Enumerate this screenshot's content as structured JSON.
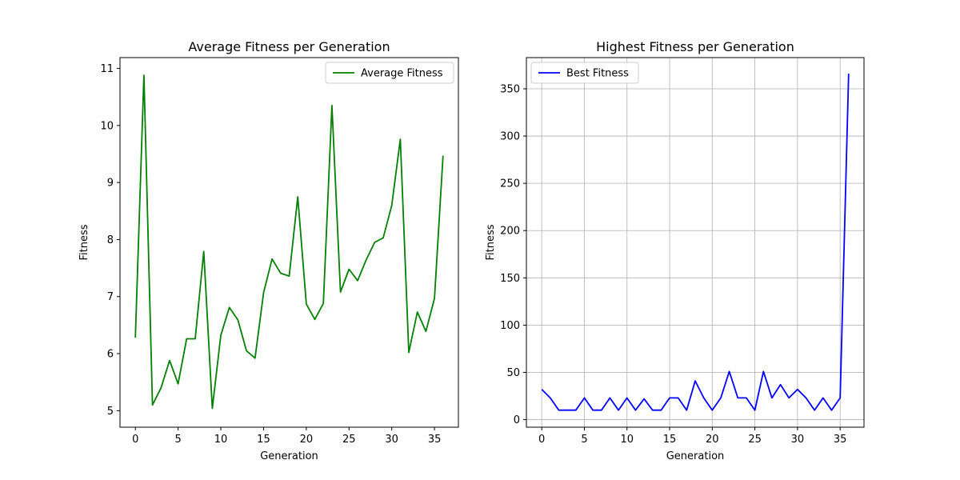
{
  "chart_data": [
    {
      "type": "line",
      "title": "Average Fitness per Generation",
      "xlabel": "Generation",
      "ylabel": "Fitness",
      "xlim": [
        -1.8,
        37.8
      ],
      "ylim": [
        4.71,
        11.19
      ],
      "xticks": [
        0,
        5,
        10,
        15,
        20,
        25,
        30,
        35
      ],
      "yticks": [
        5,
        6,
        7,
        8,
        9,
        10,
        11
      ],
      "grid": false,
      "legend": "top-right",
      "series": [
        {
          "name": "Average Fitness",
          "color": "#008000",
          "x": [
            0,
            1,
            2,
            3,
            4,
            5,
            6,
            7,
            8,
            9,
            10,
            11,
            12,
            13,
            14,
            15,
            16,
            17,
            18,
            19,
            20,
            21,
            22,
            23,
            24,
            25,
            26,
            27,
            28,
            29,
            30,
            31,
            32,
            33,
            34,
            35,
            36
          ],
          "y": [
            6.28,
            10.88,
            5.1,
            5.4,
            5.88,
            5.47,
            6.26,
            6.26,
            7.79,
            5.04,
            6.32,
            6.81,
            6.59,
            6.05,
            5.92,
            7.07,
            7.66,
            7.41,
            7.36,
            8.75,
            6.87,
            6.6,
            6.88,
            10.35,
            7.08,
            7.48,
            7.28,
            7.64,
            7.95,
            8.03,
            8.6,
            9.76,
            6.02,
            6.73,
            6.39,
            6.97,
            9.47
          ]
        }
      ]
    },
    {
      "type": "line",
      "title": "Highest Fitness per Generation",
      "xlabel": "Generation",
      "ylabel": "Fitness",
      "xlim": [
        -1.8,
        37.8
      ],
      "ylim": [
        -8,
        383
      ],
      "xticks": [
        0,
        5,
        10,
        15,
        20,
        25,
        30,
        35
      ],
      "yticks": [
        0,
        50,
        100,
        150,
        200,
        250,
        300,
        350
      ],
      "grid": true,
      "legend": "top-left",
      "series": [
        {
          "name": "Best Fitness",
          "color": "#0000ff",
          "x": [
            0,
            1,
            2,
            3,
            4,
            5,
            6,
            7,
            8,
            9,
            10,
            11,
            12,
            13,
            14,
            15,
            16,
            17,
            18,
            19,
            20,
            21,
            22,
            23,
            24,
            25,
            26,
            27,
            28,
            29,
            30,
            31,
            32,
            33,
            34,
            35,
            36
          ],
          "y": [
            32,
            23,
            10,
            10,
            10,
            23,
            10,
            10,
            23,
            10,
            23,
            10,
            22,
            10,
            10,
            23,
            23,
            10,
            41,
            23,
            10,
            23,
            51,
            23,
            23,
            10,
            51,
            23,
            37,
            23,
            32,
            23,
            10,
            23,
            10,
            23,
            366
          ]
        }
      ]
    }
  ]
}
